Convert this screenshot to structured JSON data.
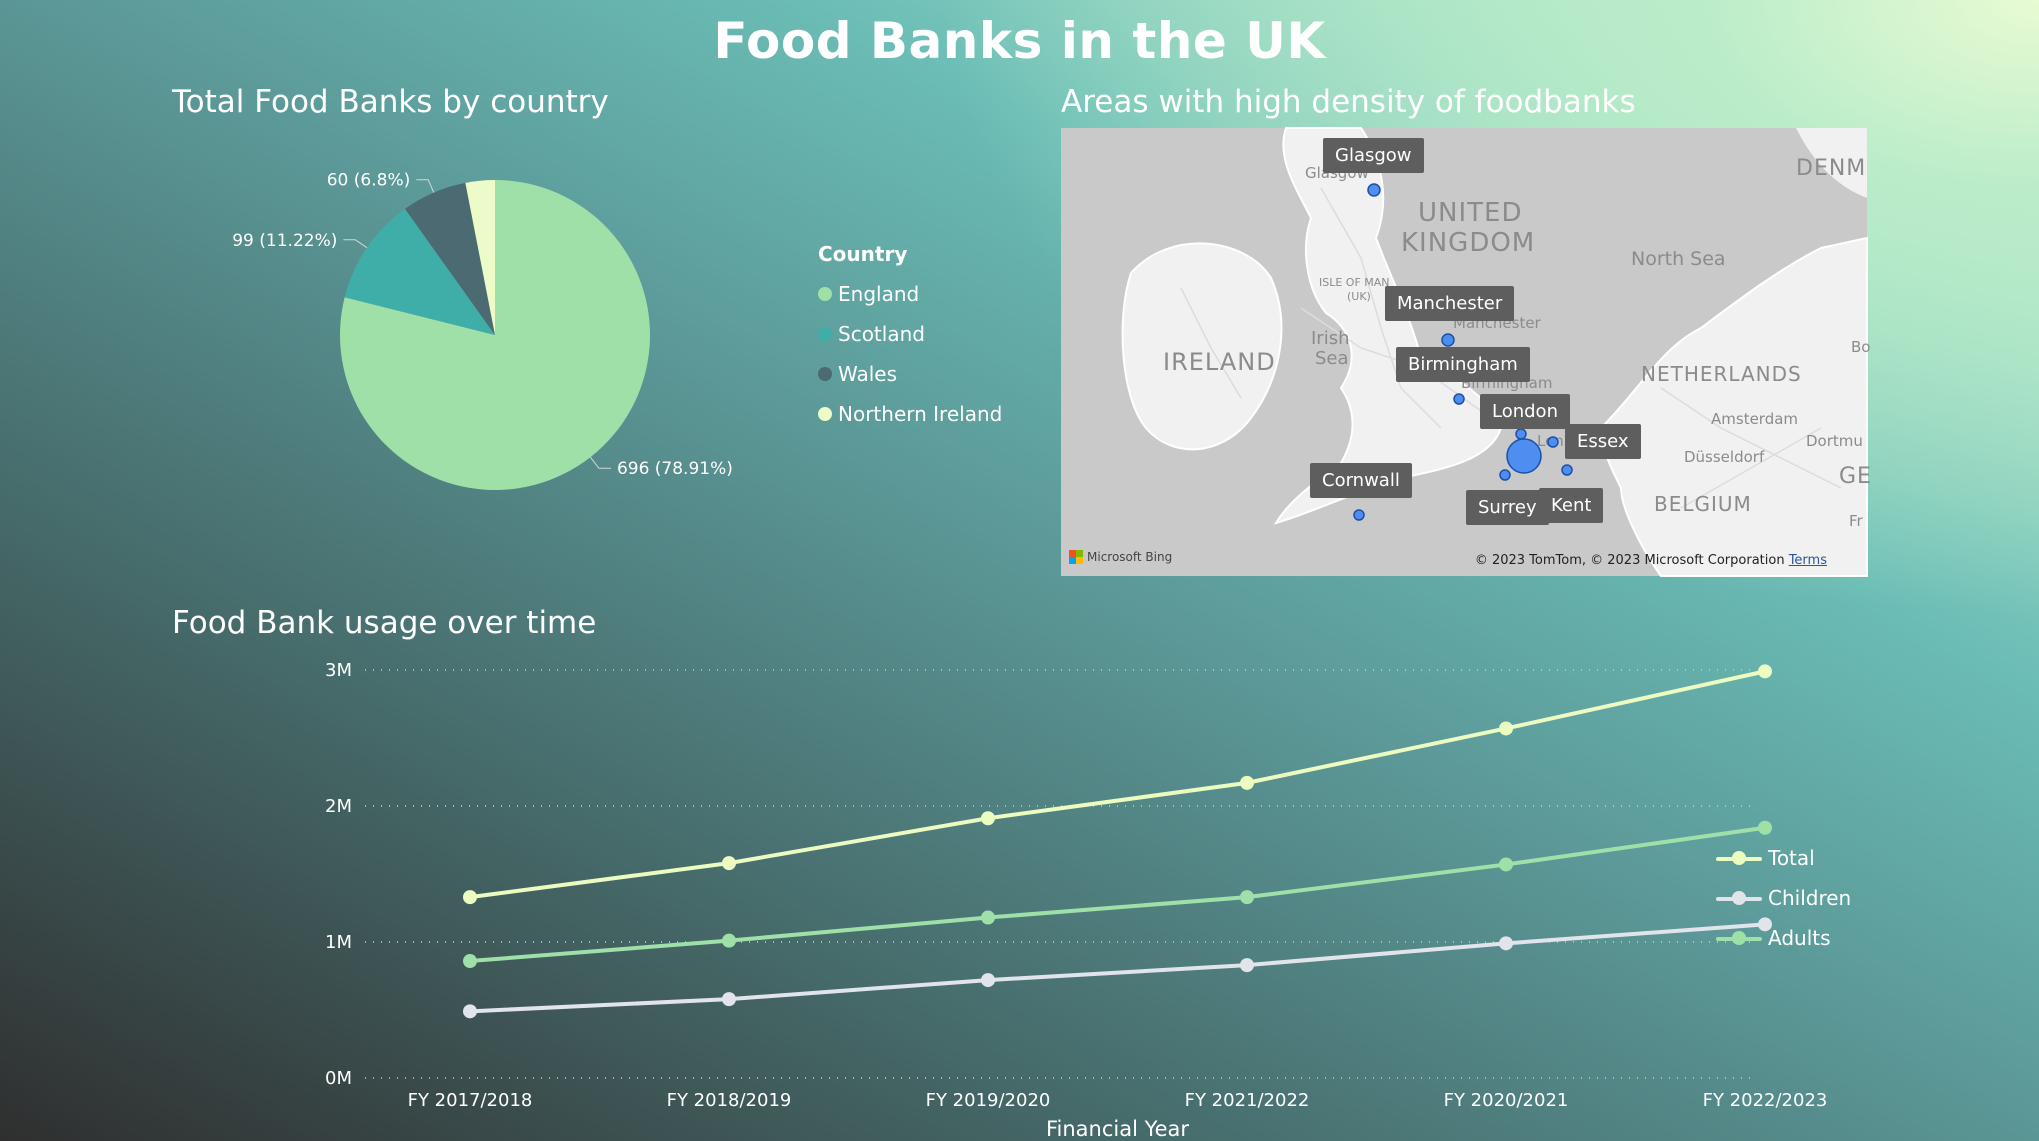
{
  "page": {
    "title": "Food Banks in the UK"
  },
  "pie_section": {
    "title": "Total Food Banks by country",
    "legend_title": "Country"
  },
  "map_section": {
    "title": "Areas with high density of foodbanks",
    "region_labels": [
      "UNITED",
      "KINGDOM",
      "IRELAND",
      "Irish",
      "Sea",
      "North Sea",
      "NETHERLANDS",
      "BELGIUM",
      "DENM",
      "GE",
      "Amsterdam",
      "Düsseldorf",
      "Dortmu",
      "ISLE OF MAN",
      "(UK)",
      "Glasgow",
      "Manchester",
      "Birmingham",
      "Lon",
      "Bo",
      "Fr"
    ],
    "tags": [
      "Glasgow",
      "Manchester",
      "Birmingham",
      "London",
      "Essex",
      "Cornwall",
      "Surrey",
      "Kent"
    ],
    "credit": "© 2023 TomTom, © 2023 Microsoft Corporation",
    "terms_link": "Terms",
    "bing_label": "Microsoft Bing"
  },
  "line_section": {
    "title": "Food Bank usage over time"
  },
  "colors": {
    "england": "#9fe0a9",
    "scotland": "#3fada8",
    "wales": "#4b6a72",
    "northern_ireland": "#ecfbc8",
    "total": "#ecfbc0",
    "children": "#e2e4ec",
    "adults": "#9fe0a9"
  },
  "chart_data": [
    {
      "type": "pie",
      "title": "Total Food Banks by country",
      "legend_title": "Country",
      "categories": [
        "England",
        "Scotland",
        "Wales",
        "Northern Ireland"
      ],
      "values": [
        696,
        99,
        60,
        27
      ],
      "data_labels": [
        "696 (78.91%)",
        "99 (11.22%)",
        "60 (6.8%)",
        ""
      ],
      "legend_position": "right"
    },
    {
      "type": "line",
      "title": "Food Bank usage over time",
      "xlabel": "Financial Year",
      "ylabel": "",
      "categories": [
        "FY 2017/2018",
        "FY 2018/2019",
        "FY 2019/2020",
        "FY 2021/2022",
        "FY 2020/2021",
        "FY 2022/2023"
      ],
      "series": [
        {
          "name": "Total",
          "values": [
            1330000,
            1580000,
            1910000,
            2170000,
            2570000,
            2990000
          ]
        },
        {
          "name": "Children",
          "values": [
            490000,
            580000,
            720000,
            830000,
            990000,
            1130000
          ]
        },
        {
          "name": "Adults",
          "values": [
            860000,
            1010000,
            1180000,
            1330000,
            1570000,
            1840000
          ]
        }
      ],
      "ylim": [
        0,
        3000000
      ],
      "y_ticks": [
        "0M",
        "1M",
        "2M",
        "3M"
      ],
      "grid": true,
      "legend_position": "right"
    }
  ]
}
